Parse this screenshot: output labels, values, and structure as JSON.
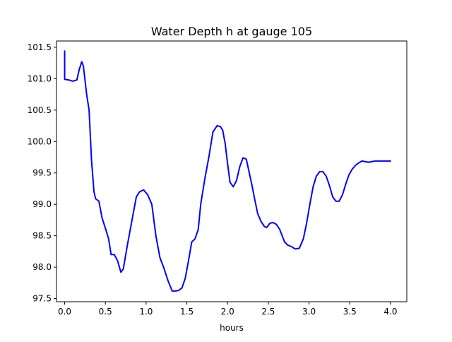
{
  "chart_data": {
    "type": "line",
    "title": "Water Depth h at gauge 105",
    "xlabel": "hours",
    "ylabel": "",
    "xlim": [
      -0.1,
      4.2
    ],
    "ylim": [
      97.45,
      101.6
    ],
    "xticks": [
      0.0,
      0.5,
      1.0,
      1.5,
      2.0,
      2.5,
      3.0,
      3.5,
      4.0
    ],
    "xtick_labels": [
      "0.0",
      "0.5",
      "1.0",
      "1.5",
      "2.0",
      "2.5",
      "3.0",
      "3.5",
      "4.0"
    ],
    "yticks": [
      97.5,
      98.0,
      98.5,
      99.0,
      99.5,
      100.0,
      100.5,
      101.0,
      101.5
    ],
    "ytick_labels": [
      "97.5",
      "98.0",
      "98.5",
      "99.0",
      "99.5",
      "100.0",
      "100.5",
      "101.0",
      "101.5"
    ],
    "grid": false,
    "legend": "none",
    "line_color": "#0000ff",
    "series": [
      {
        "x": [
          0.0,
          0.0,
          0.05,
          0.1,
          0.15,
          0.18,
          0.21,
          0.23,
          0.27,
          0.3,
          0.33,
          0.36,
          0.38,
          0.42,
          0.46,
          0.5,
          0.54,
          0.57,
          0.61,
          0.65,
          0.69,
          0.72,
          0.77,
          0.82,
          0.88,
          0.92,
          0.97,
          1.02,
          1.07,
          1.12,
          1.17,
          1.22,
          1.27,
          1.32,
          1.36,
          1.4,
          1.44,
          1.48,
          1.52,
          1.56,
          1.6,
          1.64,
          1.67,
          1.72,
          1.77,
          1.82,
          1.87,
          1.91,
          1.94,
          1.97,
          2.0,
          2.03,
          2.07,
          2.11,
          2.15,
          2.19,
          2.23,
          2.27,
          2.3,
          2.33,
          2.37,
          2.41,
          2.45,
          2.48,
          2.52,
          2.56,
          2.6,
          2.64,
          2.67,
          2.7,
          2.74,
          2.78,
          2.83,
          2.88,
          2.93,
          2.97,
          3.01,
          3.05,
          3.09,
          3.13,
          3.17,
          3.21,
          3.25,
          3.29,
          3.33,
          3.37,
          3.41,
          3.45,
          3.49,
          3.53,
          3.57,
          3.61,
          3.65,
          3.69,
          3.73,
          3.77,
          3.81,
          3.85,
          3.89,
          3.93,
          3.96,
          4.0
        ],
        "y": [
          101.44,
          100.99,
          100.98,
          100.96,
          100.98,
          101.15,
          101.27,
          101.2,
          100.75,
          100.5,
          99.7,
          99.2,
          99.09,
          99.05,
          98.78,
          98.62,
          98.45,
          98.2,
          98.2,
          98.1,
          97.92,
          97.97,
          98.35,
          98.7,
          99.12,
          99.2,
          99.23,
          99.15,
          99.0,
          98.5,
          98.15,
          97.98,
          97.78,
          97.62,
          97.62,
          97.63,
          97.67,
          97.82,
          98.1,
          98.4,
          98.45,
          98.6,
          99.0,
          99.4,
          99.75,
          100.15,
          100.25,
          100.24,
          100.18,
          99.97,
          99.65,
          99.35,
          99.28,
          99.38,
          99.6,
          99.74,
          99.72,
          99.48,
          99.3,
          99.1,
          98.85,
          98.73,
          98.65,
          98.63,
          98.7,
          98.71,
          98.68,
          98.6,
          98.5,
          98.4,
          98.35,
          98.33,
          98.29,
          98.3,
          98.45,
          98.7,
          99.0,
          99.28,
          99.45,
          99.52,
          99.52,
          99.45,
          99.3,
          99.12,
          99.05,
          99.05,
          99.15,
          99.32,
          99.47,
          99.56,
          99.62,
          99.66,
          99.69,
          99.68,
          99.67,
          99.68,
          99.69,
          99.69,
          99.69,
          99.69,
          99.69,
          99.69
        ]
      }
    ]
  }
}
